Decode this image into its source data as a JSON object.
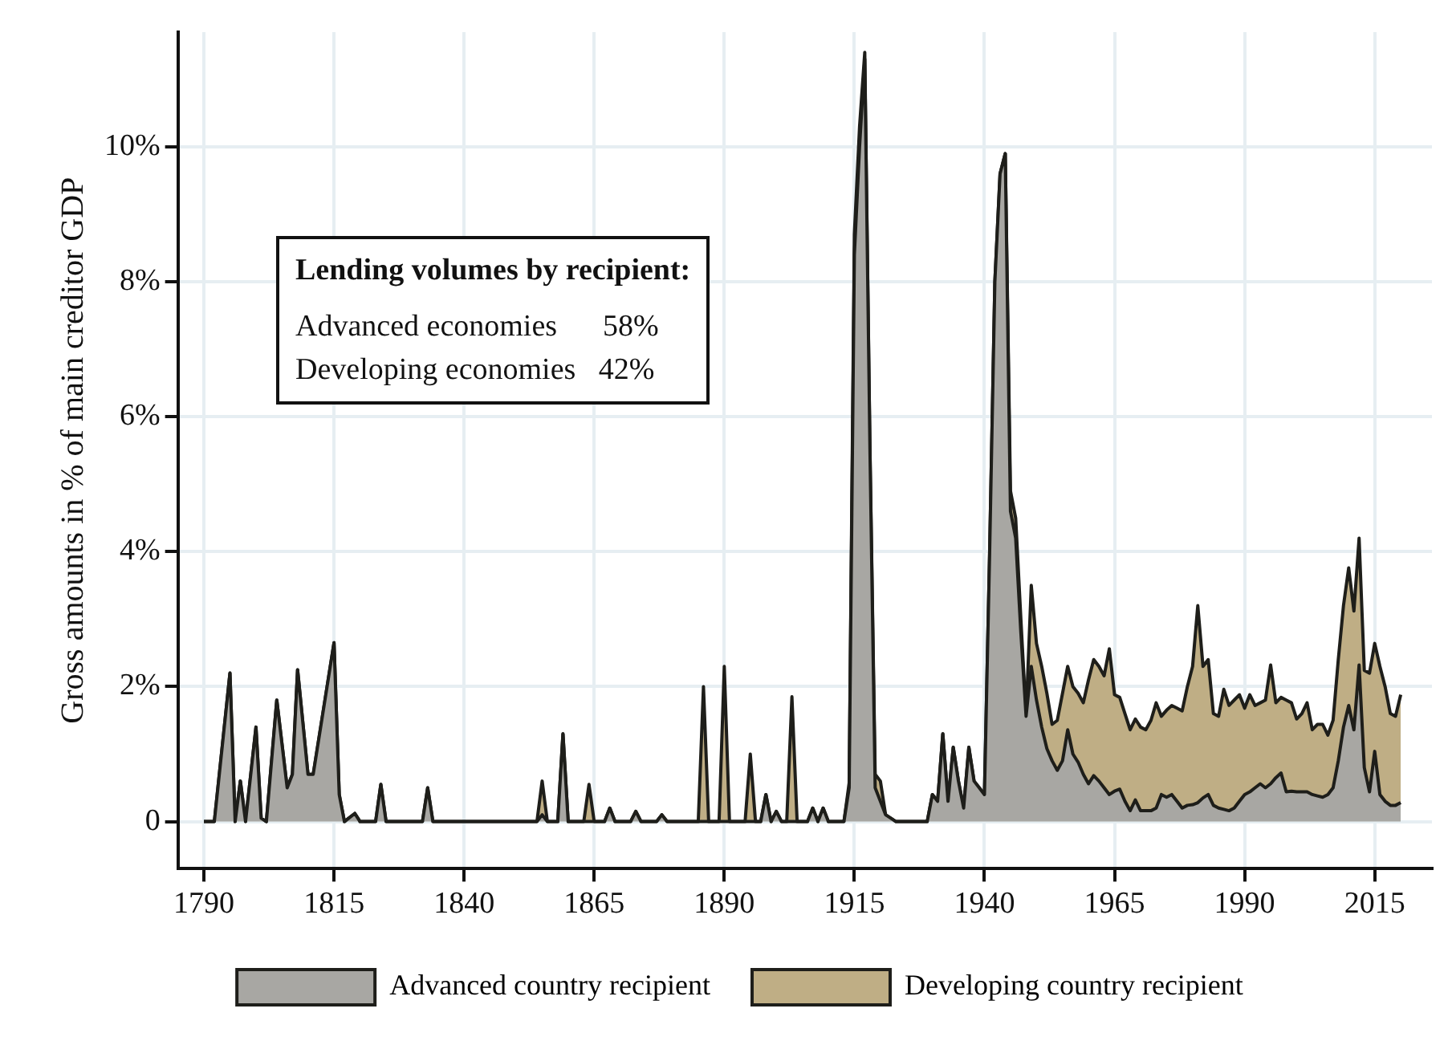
{
  "chart_data": {
    "type": "area",
    "stacked": true,
    "ylabel": "Gross amounts in % of main creditor GDP",
    "x": [
      1790,
      1792,
      1795,
      1796,
      1797,
      1798,
      1800,
      1801,
      1802,
      1804,
      1806,
      1807,
      1808,
      1810,
      1811,
      1815,
      1816,
      1817,
      1819,
      1820,
      1823,
      1824,
      1825,
      1832,
      1833,
      1834,
      1854,
      1855,
      1856,
      1858,
      1859,
      1860,
      1863,
      1864,
      1865,
      1867,
      1868,
      1869,
      1872,
      1873,
      1874,
      1877,
      1878,
      1879,
      1885,
      1886,
      1887,
      1889,
      1890,
      1891,
      1894,
      1895,
      1896,
      1897,
      1898,
      1899,
      1900,
      1901,
      1902,
      1903,
      1904,
      1906,
      1907,
      1908,
      1909,
      1910,
      1913,
      1914,
      1915,
      1916,
      1917,
      1918,
      1919,
      1920,
      1921,
      1922,
      1923,
      1929,
      1930,
      1931,
      1932,
      1933,
      1934,
      1935,
      1936,
      1937,
      1938,
      1939,
      1940,
      1941,
      1942,
      1943,
      1944,
      1945,
      1946,
      1947,
      1948,
      1949,
      1950,
      1951,
      1952,
      1953,
      1954,
      1955,
      1956,
      1957,
      1958,
      1959,
      1960,
      1961,
      1962,
      1963,
      1964,
      1965,
      1966,
      1967,
      1968,
      1969,
      1970,
      1971,
      1972,
      1973,
      1974,
      1975,
      1976,
      1977,
      1978,
      1979,
      1980,
      1981,
      1982,
      1983,
      1984,
      1985,
      1986,
      1987,
      1988,
      1989,
      1990,
      1991,
      1992,
      1993,
      1994,
      1995,
      1996,
      1997,
      1998,
      1999,
      2000,
      2001,
      2002,
      2003,
      2004,
      2005,
      2006,
      2007,
      2008,
      2009,
      2010,
      2011,
      2012,
      2013,
      2014,
      2015,
      2016,
      2017,
      2018,
      2019,
      2020
    ],
    "series": [
      {
        "name": "Advanced country recipient",
        "color": "#a8a7a3",
        "values": [
          0,
          0,
          2.2,
          0,
          0.6,
          0,
          1.4,
          0.05,
          0,
          1.8,
          0.5,
          0.7,
          2.25,
          0.7,
          0.7,
          2.65,
          0.4,
          0,
          0.12,
          0,
          0,
          0.55,
          0,
          0,
          0.5,
          0,
          0,
          0.1,
          0,
          0,
          1.3,
          0,
          0,
          0,
          0,
          0,
          0.2,
          0,
          0,
          0.15,
          0,
          0,
          0.1,
          0,
          0,
          0,
          0,
          0,
          0,
          0,
          0,
          0,
          0,
          0,
          0.4,
          0,
          0.15,
          0,
          0,
          0,
          0,
          0,
          0.2,
          0,
          0.2,
          0,
          0,
          0.5,
          8.4,
          10.0,
          11.3,
          5.5,
          0.5,
          0.3,
          0.1,
          0.05,
          0,
          0,
          0.4,
          0.3,
          1.3,
          0.3,
          1.1,
          0.6,
          0.2,
          1.1,
          0.6,
          0.5,
          0.4,
          4,
          8,
          9.6,
          9.9,
          4.6,
          4.2,
          2.8,
          1.56,
          2.3,
          1.8,
          1.4,
          1.08,
          0.9,
          0.76,
          0.9,
          1.36,
          1.0,
          0.88,
          0.7,
          0.56,
          0.68,
          0.6,
          0.5,
          0.4,
          0.45,
          0.48,
          0.3,
          0.16,
          0.32,
          0.16,
          0.16,
          0.16,
          0.2,
          0.4,
          0.36,
          0.4,
          0.3,
          0.2,
          0.24,
          0.25,
          0.28,
          0.35,
          0.4,
          0.24,
          0.2,
          0.18,
          0.16,
          0.2,
          0.3,
          0.4,
          0.44,
          0.5,
          0.56,
          0.5,
          0.56,
          0.65,
          0.72,
          0.44,
          0.45,
          0.44,
          0.44,
          0.44,
          0.4,
          0.38,
          0.36,
          0.4,
          0.5,
          0.9,
          1.4,
          1.72,
          1.36,
          2.32,
          0.8,
          0.44,
          1.04,
          0.4,
          0.3,
          0.24,
          0.24,
          0.28
        ]
      },
      {
        "name": "Developing country recipient",
        "color": "#bfae85",
        "values": [
          0,
          0,
          0,
          0,
          0,
          0,
          0,
          0,
          0,
          0,
          0,
          0,
          0,
          0,
          0,
          0,
          0,
          0,
          0,
          0,
          0,
          0,
          0,
          0,
          0,
          0,
          0,
          0.5,
          0,
          0,
          0,
          0,
          0,
          0.55,
          0,
          0,
          0,
          0,
          0,
          0,
          0,
          0,
          0,
          0,
          0,
          2.0,
          0,
          0,
          2.3,
          0,
          0,
          1.0,
          0,
          0,
          0,
          0,
          0,
          0,
          0,
          1.85,
          0,
          0,
          0,
          0,
          0,
          0,
          0,
          0.07,
          0.3,
          0.3,
          0.1,
          0,
          0.2,
          0.3,
          0,
          0,
          0,
          0,
          0,
          0,
          0,
          0,
          0,
          0,
          0,
          0,
          0,
          0,
          0,
          0,
          0,
          0,
          0,
          0.3,
          0.3,
          0.2,
          0,
          1.2,
          0.84,
          0.9,
          0.82,
          0.54,
          0.74,
          1.0,
          0.94,
          1.0,
          1.02,
          1.06,
          1.54,
          1.72,
          1.7,
          1.66,
          2.16,
          1.43,
          1.36,
          1.3,
          1.2,
          1.2,
          1.24,
          1.2,
          1.34,
          1.56,
          1.16,
          1.29,
          1.32,
          1.38,
          1.44,
          1.76,
          2.05,
          2.92,
          1.95,
          2.0,
          1.36,
          1.36,
          1.78,
          1.56,
          1.6,
          1.58,
          1.28,
          1.44,
          1.22,
          1.2,
          1.3,
          1.76,
          1.11,
          1.12,
          1.36,
          1.31,
          1.08,
          1.16,
          1.32,
          0.96,
          1.06,
          1.08,
          0.88,
          1.0,
          1.5,
          1.8,
          2.04,
          1.76,
          1.88,
          1.44,
          1.76,
          1.6,
          1.9,
          1.7,
          1.36,
          1.32,
          1.6
        ]
      }
    ],
    "xlim": [
      1785,
      2026
    ],
    "xticks": [
      1790,
      1815,
      1840,
      1865,
      1890,
      1915,
      1940,
      1965,
      1990,
      2015
    ],
    "ylim": [
      -0.7,
      11.7
    ],
    "yticks": [
      0,
      {
        "value": 2,
        "label": "2%"
      },
      {
        "value": 4,
        "label": "4%"
      },
      {
        "value": 6,
        "label": "6%"
      },
      {
        "value": 8,
        "label": "8%"
      },
      {
        "value": 10,
        "label": "10%"
      }
    ],
    "grid": true,
    "legend": "bottom",
    "marker": "none",
    "line_style": "solid",
    "annotations": [
      "Lending volumes by recipient:",
      "Advanced economies      58%",
      "Developing economies   42%"
    ]
  }
}
